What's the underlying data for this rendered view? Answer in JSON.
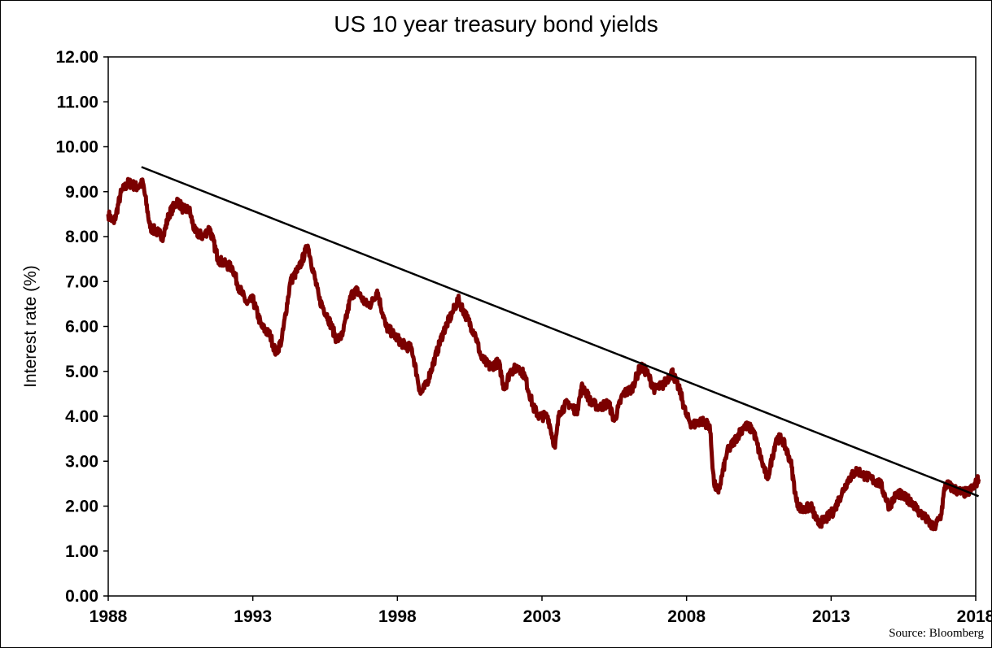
{
  "chart_data": {
    "type": "line",
    "title": "US 10 year treasury bond yields",
    "xlabel": "",
    "ylabel": "Interest rate (%)",
    "source": "Source: Bloomberg",
    "xlim": [
      1988,
      2018
    ],
    "ylim": [
      0,
      12
    ],
    "x_ticks": [
      "1988",
      "1993",
      "1998",
      "2003",
      "2008",
      "2013",
      "2018"
    ],
    "y_ticks": [
      "0.00",
      "1.00",
      "2.00",
      "3.00",
      "4.00",
      "5.00",
      "6.00",
      "7.00",
      "8.00",
      "9.00",
      "10.00",
      "11.00",
      "12.00"
    ],
    "grid": false,
    "legend": "none",
    "colors": {
      "series": "#7b0000",
      "trend": "#000000"
    },
    "series": [
      {
        "x": [
          1988.0,
          1988.2,
          1988.45,
          1988.7,
          1989.0,
          1989.2,
          1989.45,
          1989.7,
          1989.9,
          1990.1,
          1990.4,
          1990.6,
          1990.8,
          1991.0,
          1991.3,
          1991.5,
          1991.8,
          1992.0,
          1992.3,
          1992.5,
          1992.8,
          1993.0,
          1993.3,
          1993.6,
          1993.8,
          1994.0,
          1994.3,
          1994.6,
          1994.9,
          1995.0,
          1995.3,
          1995.6,
          1995.9,
          1996.1,
          1996.4,
          1996.6,
          1996.9,
          1997.1,
          1997.3,
          1997.6,
          1997.9,
          1998.2,
          1998.5,
          1998.8,
          1999.0,
          1999.3,
          1999.6,
          1999.9,
          2000.1,
          2000.4,
          2000.7,
          2000.9,
          2001.2,
          2001.5,
          2001.7,
          2001.9,
          2002.2,
          2002.4,
          2002.7,
          2002.9,
          2003.2,
          2003.45,
          2003.6,
          2003.9,
          2004.2,
          2004.4,
          2004.7,
          2005.0,
          2005.3,
          2005.5,
          2005.8,
          2006.1,
          2006.4,
          2006.6,
          2006.9,
          2007.2,
          2007.5,
          2007.8,
          2008.0,
          2008.2,
          2008.5,
          2008.8,
          2008.95,
          2009.1,
          2009.4,
          2009.7,
          2010.0,
          2010.3,
          2010.6,
          2010.8,
          2011.1,
          2011.3,
          2011.6,
          2011.8,
          2012.0,
          2012.3,
          2012.55,
          2012.8,
          2013.1,
          2013.3,
          2013.6,
          2013.9,
          2014.1,
          2014.4,
          2014.7,
          2015.0,
          2015.3,
          2015.5,
          2015.8,
          2016.0,
          2016.3,
          2016.55,
          2016.8,
          2016.95,
          2017.2,
          2017.5,
          2017.7,
          2017.9,
          2018.1
        ],
        "values": [
          8.5,
          8.3,
          9.0,
          9.2,
          9.1,
          9.2,
          8.2,
          8.1,
          8.0,
          8.5,
          8.8,
          8.6,
          8.6,
          8.1,
          8.0,
          8.2,
          7.5,
          7.4,
          7.3,
          6.9,
          6.5,
          6.6,
          6.0,
          5.8,
          5.4,
          5.7,
          7.0,
          7.3,
          7.8,
          7.5,
          6.6,
          6.2,
          5.7,
          5.8,
          6.7,
          6.8,
          6.5,
          6.5,
          6.8,
          6.0,
          5.8,
          5.6,
          5.5,
          4.5,
          4.7,
          5.3,
          5.9,
          6.3,
          6.6,
          6.2,
          5.8,
          5.3,
          5.1,
          5.2,
          4.6,
          5.0,
          5.1,
          4.9,
          4.2,
          4.0,
          4.0,
          3.3,
          4.1,
          4.3,
          4.1,
          4.7,
          4.3,
          4.2,
          4.3,
          3.9,
          4.5,
          4.6,
          5.1,
          5.0,
          4.6,
          4.7,
          5.0,
          4.5,
          4.0,
          3.8,
          3.9,
          3.8,
          2.5,
          2.3,
          3.2,
          3.5,
          3.8,
          3.7,
          3.0,
          2.6,
          3.5,
          3.5,
          3.0,
          2.1,
          1.9,
          2.0,
          1.6,
          1.7,
          1.9,
          2.2,
          2.6,
          2.8,
          2.7,
          2.6,
          2.5,
          2.0,
          2.3,
          2.2,
          2.1,
          1.9,
          1.7,
          1.5,
          1.8,
          2.5,
          2.4,
          2.3,
          2.3,
          2.4,
          2.6
        ]
      }
    ],
    "trendline": {
      "x": [
        1989.15,
        2018.1
      ],
      "y": [
        9.55,
        2.22
      ]
    }
  }
}
